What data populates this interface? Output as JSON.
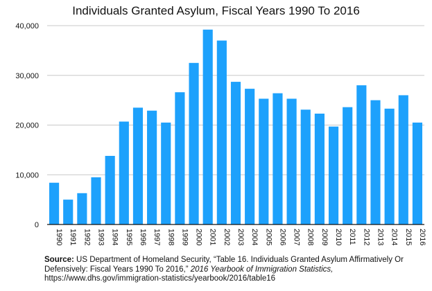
{
  "chart_data": {
    "type": "bar",
    "title": "Individuals Granted Asylum, Fiscal Years 1990 To 2016",
    "xlabel": "",
    "ylabel": "",
    "ylim": [
      0,
      40000
    ],
    "yticks": [
      "0",
      "10,000",
      "20,000",
      "30,000",
      "40,000"
    ],
    "grid": true,
    "bar_color": "#1da1fc",
    "categories": [
      "1990",
      "1991",
      "1992",
      "1993",
      "1994",
      "1995",
      "1996",
      "1997",
      "1998",
      "1999",
      "2000",
      "2001",
      "2002",
      "2003",
      "2004",
      "2005",
      "2006",
      "2007",
      "2008",
      "2009",
      "2010",
      "2011",
      "2012",
      "2013",
      "2014",
      "2015",
      "2016"
    ],
    "values": [
      8400,
      5000,
      6300,
      9500,
      13800,
      20700,
      23500,
      22900,
      20500,
      26600,
      32500,
      39200,
      37000,
      28700,
      27300,
      25300,
      26400,
      25300,
      23100,
      22300,
      19700,
      23600,
      28000,
      25000,
      23300,
      26000,
      20500
    ]
  },
  "source": {
    "label": "Source:",
    "text1": " US Department of Homeland Security, “Table 16. Individuals Granted Asylum Affirmatively Or Defensively: Fiscal Years 1990 To 2016,” ",
    "publication": "2016 Yearbook of Immigration Statistics,",
    "url": "https://www.dhs.gov/immigration-statistics/yearbook/2016/table16"
  }
}
